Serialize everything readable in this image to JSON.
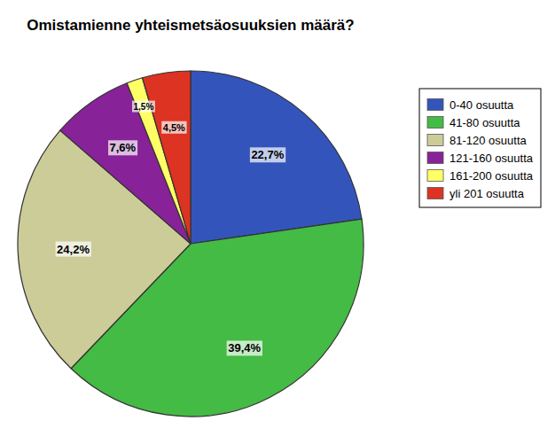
{
  "chart_data": {
    "type": "pie",
    "title": "Omistamienne yhteismetsäosuuksien määrä?",
    "categories": [
      "0-40 osuutta",
      "41-80 osuutta",
      "81-120 osuutta",
      "121-160 osuutta",
      "161-200 osuutta",
      "yli 201 osuutta"
    ],
    "values": [
      22.7,
      39.4,
      24.2,
      7.6,
      1.5,
      4.5
    ],
    "value_labels": [
      "22,7%",
      "39,4%",
      "24,2%",
      "7,6%",
      "1,5%",
      "4,5%"
    ],
    "colors": [
      "#3355BB",
      "#44BB44",
      "#CCCC99",
      "#882299",
      "#FFFF66",
      "#DD3322"
    ],
    "data_labels": true,
    "legend": "right"
  }
}
